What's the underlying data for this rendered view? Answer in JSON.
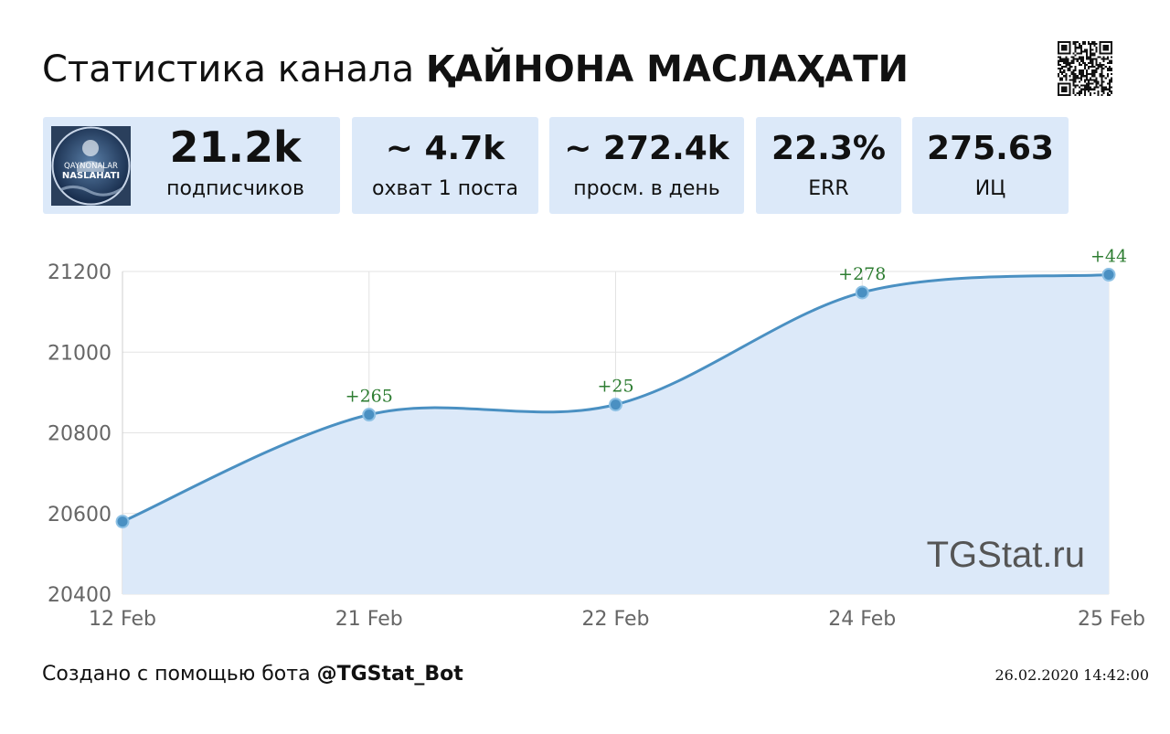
{
  "title": {
    "prefix": "Статистика канала",
    "channel_name": "ҚАЙНОНА МАСЛАҲАТИ"
  },
  "avatar": {
    "text_line1": "QAYNONALAR",
    "text_line2": "NASLAHATI"
  },
  "stats": [
    {
      "value": "21.2k",
      "label": "подписчиков"
    },
    {
      "value": "~ 4.7k",
      "label": "охват 1 поста"
    },
    {
      "value": "~ 272.4k",
      "label": "просм. в день"
    },
    {
      "value": "22.3%",
      "label": "ERR"
    },
    {
      "value": "275.63",
      "label": "ИЦ"
    }
  ],
  "colors": {
    "card_bg": "#dce9f9",
    "line": "#4a90c2",
    "area": "#dce9f9",
    "annotation": "#2e7d32",
    "grid": "#e3e3e3",
    "axis_text": "#666666"
  },
  "chart_data": {
    "type": "area",
    "title": "",
    "xlabel": "",
    "ylabel": "",
    "x": [
      "12 Feb",
      "21 Feb",
      "22 Feb",
      "24 Feb",
      "25 Feb"
    ],
    "values": [
      20580,
      20845,
      20870,
      21148,
      21192
    ],
    "annotations": [
      "",
      "+265",
      "+25",
      "+278",
      "+44"
    ],
    "yticks": [
      20400,
      20600,
      20800,
      21000,
      21200
    ],
    "ylim": [
      20400,
      21200
    ],
    "grid": true,
    "watermark": "TGStat.ru"
  },
  "footer": {
    "created_prefix": "Создано с помощью бота",
    "bot_handle": "@TGStat_Bot",
    "timestamp": "26.02.2020 14:42:00"
  },
  "icons": {
    "qr": "qr-code-icon"
  }
}
